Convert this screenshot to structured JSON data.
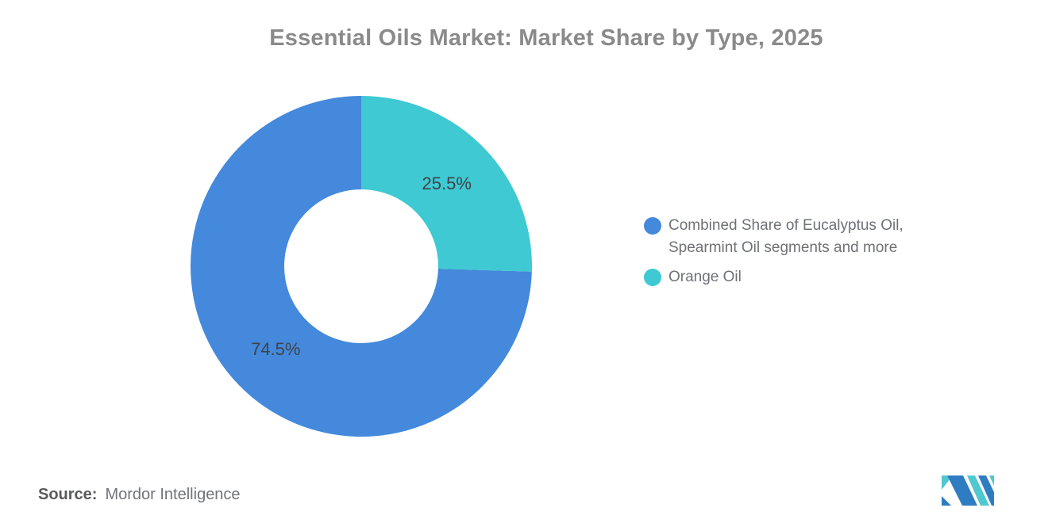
{
  "chart_data": {
    "type": "pie",
    "subtype": "donut",
    "title": "Essential Oils Market: Market Share by Type, 2025",
    "title_color": "#8A8A8A",
    "direction": "counterclockwise",
    "start_angle_deg": 0,
    "legend_position": "right",
    "data_label_color": "#3F434A",
    "slices": [
      {
        "label": "Combined Share of Eucalyptus Oil, Spearmint Oil segments and more",
        "value": 74.5,
        "data_label": "74.5%",
        "color": "#4489DB"
      },
      {
        "label": "Orange Oil",
        "value": 25.5,
        "data_label": "25.5%",
        "color": "#3EC9D3"
      }
    ]
  },
  "source": {
    "prefix": "Source:",
    "text": "Mordor Intelligence"
  },
  "logo": {
    "alt": "Mordor Intelligence",
    "blue": "#2E7DC2",
    "teal": "#4FC8D0"
  }
}
